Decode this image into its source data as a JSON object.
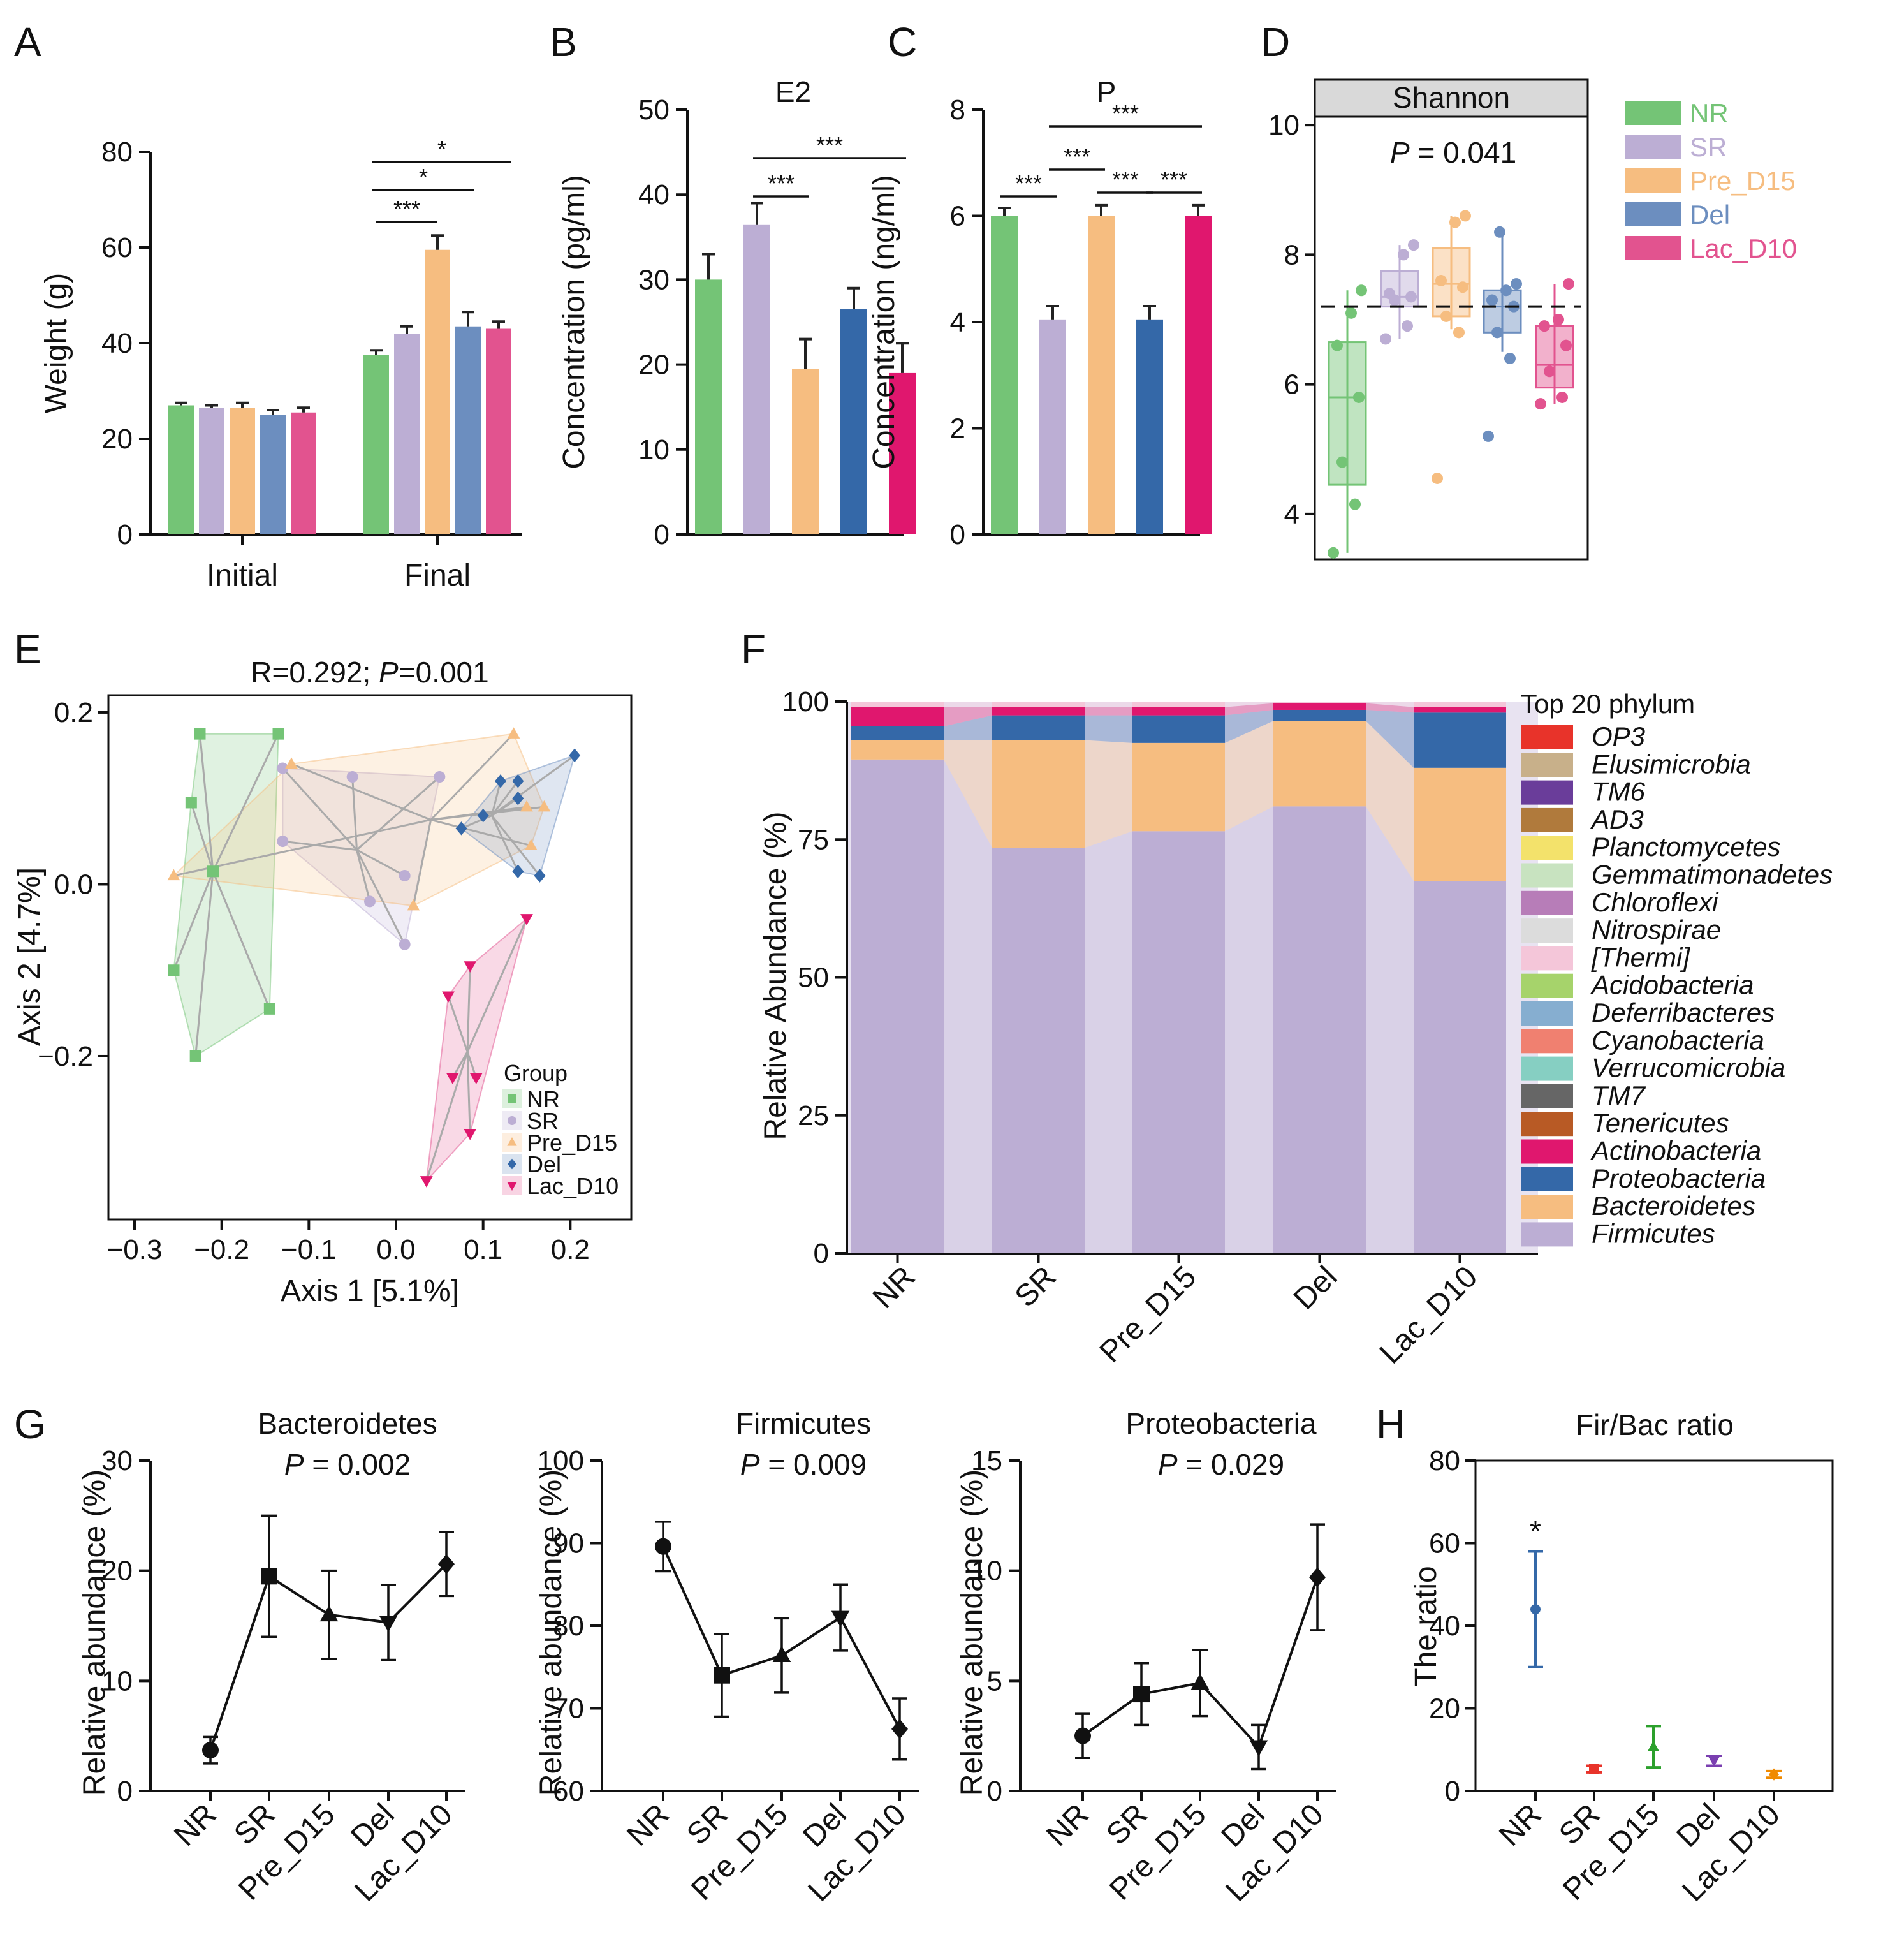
{
  "colors": {
    "NR": "#74c476",
    "SR": "#bcaed4",
    "Pre_D15": "#f6bd80",
    "Del": "#6c8ebf",
    "Lac_D10": "#e2538f"
  },
  "panels": {
    "A": "A",
    "B": "B",
    "C": "C",
    "D": "D",
    "E": "E",
    "F": "F",
    "G": "G",
    "H": "H"
  },
  "chart_data": [
    {
      "id": "A",
      "type": "bar",
      "groups": [
        "Initial",
        "Final"
      ],
      "series_names": [
        "NR",
        "SR",
        "Pre_D15",
        "Del",
        "Lac_D10"
      ],
      "values": [
        [
          27,
          26.5,
          26.5,
          25,
          25.5
        ],
        [
          37.5,
          42,
          59.5,
          43.5,
          43
        ]
      ],
      "errors": [
        [
          0.5,
          0.5,
          1,
          1,
          1
        ],
        [
          1,
          1.5,
          3,
          3,
          1.5
        ]
      ],
      "ylabel": "Weight (g)",
      "ylim": [
        0,
        80
      ],
      "yticks": [
        0,
        20,
        40,
        60,
        80
      ],
      "sig": [
        {
          "from": 0,
          "to": 2,
          "label": "***"
        },
        {
          "from": 0,
          "to": 3,
          "label": "*"
        },
        {
          "from": 0,
          "to": 4,
          "label": "*"
        }
      ]
    },
    {
      "id": "B",
      "type": "bar",
      "title": "E2",
      "categories": [
        "NR",
        "SR",
        "Pre_D15",
        "Del",
        "Lac_D10"
      ],
      "values": [
        30,
        36.5,
        19.5,
        26.5,
        19
      ],
      "errors": [
        3,
        2.5,
        3.5,
        2.5,
        3.5
      ],
      "colors": [
        "#74c476",
        "#bcaed4",
        "#f6bd80",
        "#3468a8",
        "#e0176e"
      ],
      "ylabel": "Concentration (pg/ml)",
      "ylim": [
        0,
        50
      ],
      "yticks": [
        0,
        10,
        20,
        30,
        40,
        50
      ],
      "sig": [
        {
          "from": 1,
          "to": 2,
          "label": "***"
        },
        {
          "from": 1,
          "to": 4,
          "label": "***"
        }
      ]
    },
    {
      "id": "C",
      "type": "bar",
      "title": "P",
      "categories": [
        "NR",
        "SR",
        "Pre_D15",
        "Del",
        "Lac_D10"
      ],
      "values": [
        6,
        4.05,
        6,
        4.05,
        6
      ],
      "errors": [
        0.15,
        0.25,
        0.2,
        0.25,
        0.2
      ],
      "colors": [
        "#74c476",
        "#bcaed4",
        "#f6bd80",
        "#3468a8",
        "#e0176e"
      ],
      "ylabel": "Concentration (ng/ml)",
      "ylim": [
        0,
        8
      ],
      "yticks": [
        0,
        2,
        4,
        6,
        8
      ],
      "sig": [
        {
          "from": 0,
          "to": 1,
          "label": "***"
        },
        {
          "from": 1,
          "to": 2,
          "label": "***"
        },
        {
          "from": 1,
          "to": 4,
          "label": "***"
        },
        {
          "from": 2,
          "to": 3,
          "label": "***"
        },
        {
          "from": 3,
          "to": 4,
          "label": "***"
        }
      ]
    },
    {
      "id": "D",
      "type": "box",
      "title": "Shannon",
      "ptext": "= 0.041",
      "categories": [
        "NR",
        "SR",
        "Pre_D15",
        "Del",
        "Lac_D10"
      ],
      "ylim": [
        3.3,
        10.7
      ],
      "yticks": [
        4,
        6,
        8,
        10
      ],
      "refline": 7.2,
      "boxes": [
        {
          "q1": 4.45,
          "med": 5.8,
          "q3": 6.65,
          "lo": 3.4,
          "hi": 7.45,
          "pts": [
            3.4,
            4.15,
            4.8,
            5.8,
            6.6,
            7.1,
            7.45
          ]
        },
        {
          "q1": 7.2,
          "med": 7.35,
          "q3": 7.75,
          "lo": 6.7,
          "hi": 8.15,
          "pts": [
            6.7,
            6.9,
            7.3,
            7.35,
            7.4,
            8.0,
            8.15
          ]
        },
        {
          "q1": 7.05,
          "med": 7.55,
          "q3": 8.1,
          "lo": 6.85,
          "hi": 8.6,
          "pts": [
            4.55,
            6.8,
            7.05,
            7.5,
            7.6,
            8.5,
            8.6
          ]
        },
        {
          "q1": 6.8,
          "med": 7.2,
          "q3": 7.45,
          "lo": 6.5,
          "hi": 8.35,
          "pts": [
            5.2,
            6.4,
            6.8,
            7.2,
            7.3,
            7.45,
            7.55,
            8.35
          ]
        },
        {
          "q1": 5.95,
          "med": 6.3,
          "q3": 6.9,
          "lo": 5.7,
          "hi": 7.55,
          "pts": [
            5.7,
            5.8,
            6.2,
            6.6,
            6.9,
            7.0,
            7.55
          ]
        }
      ],
      "legend": [
        "NR",
        "SR",
        "Pre_D15",
        "Del",
        "Lac_D10"
      ]
    },
    {
      "id": "E",
      "type": "scatter",
      "title_prefix": "R=0.292; ",
      "title_suffix": "=0.001",
      "xlabel": "Axis 1 [5.1%]",
      "ylabel": "Axis 2 [4.7%]",
      "xlim": [
        -0.33,
        0.27
      ],
      "ylim": [
        -0.39,
        0.22
      ],
      "xticks": [
        -0.3,
        -0.2,
        -0.1,
        0.0,
        0.1,
        0.2
      ],
      "yticks": [
        -0.2,
        0.0,
        0.2
      ],
      "legend_title": "Group",
      "groups": [
        {
          "name": "NR",
          "shape": "square",
          "centroid": [
            -0.21,
            0.015
          ],
          "points": [
            [
              -0.225,
              0.175
            ],
            [
              -0.135,
              0.175
            ],
            [
              -0.235,
              0.095
            ],
            [
              -0.21,
              0.015
            ],
            [
              -0.255,
              -0.1
            ],
            [
              -0.145,
              -0.145
            ],
            [
              -0.23,
              -0.2
            ]
          ]
        },
        {
          "name": "SR",
          "shape": "circle",
          "centroid": [
            -0.045,
            0.04
          ],
          "points": [
            [
              -0.13,
              0.135
            ],
            [
              -0.05,
              0.125
            ],
            [
              0.05,
              0.125
            ],
            [
              -0.13,
              0.05
            ],
            [
              0.01,
              0.01
            ],
            [
              -0.03,
              -0.02
            ],
            [
              0.01,
              -0.07
            ]
          ]
        },
        {
          "name": "Pre_D15",
          "shape": "triangle",
          "centroid": [
            0.04,
            0.075
          ],
          "points": [
            [
              0.135,
              0.175
            ],
            [
              -0.12,
              0.14
            ],
            [
              0.15,
              0.09
            ],
            [
              0.17,
              0.09
            ],
            [
              -0.255,
              0.01
            ],
            [
              0.155,
              0.045
            ],
            [
              0.02,
              -0.025
            ]
          ]
        },
        {
          "name": "Del",
          "shape": "diamond",
          "centroid": [
            0.11,
            0.08
          ],
          "points": [
            [
              0.205,
              0.15
            ],
            [
              0.12,
              0.12
            ],
            [
              0.14,
              0.12
            ],
            [
              0.1,
              0.08
            ],
            [
              0.14,
              0.1
            ],
            [
              0.075,
              0.065
            ],
            [
              0.165,
              0.01
            ],
            [
              0.14,
              0.015
            ]
          ]
        },
        {
          "name": "Lac_D10",
          "shape": "tridown",
          "centroid": [
            0.082,
            -0.195
          ],
          "points": [
            [
              0.15,
              -0.04
            ],
            [
              0.085,
              -0.095
            ],
            [
              0.06,
              -0.13
            ],
            [
              0.065,
              -0.225
            ],
            [
              0.092,
              -0.225
            ],
            [
              0.085,
              -0.29
            ],
            [
              0.035,
              -0.345
            ]
          ]
        }
      ]
    },
    {
      "id": "F",
      "type": "bar",
      "stacked": true,
      "categories": [
        "NR",
        "SR",
        "Pre_D15",
        "Del",
        "Lac_D10"
      ],
      "ylabel": "Relative Abundance (%)",
      "ylim": [
        0,
        100
      ],
      "yticks": [
        0,
        25,
        50,
        75,
        100
      ],
      "legend_title": "Top 20 phylum",
      "legend": [
        {
          "name": "OP3",
          "color": "#e8332a"
        },
        {
          "name": "Elusimicrobia",
          "color": "#c8b08a"
        },
        {
          "name": "TM6",
          "color": "#6a3d9a"
        },
        {
          "name": "AD3",
          "color": "#b07a3c"
        },
        {
          "name": "Planctomycetes",
          "color": "#f3e26b"
        },
        {
          "name": "Gemmatimonadetes",
          "color": "#c8e3c0"
        },
        {
          "name": "Chloroflexi",
          "color": "#b77db8"
        },
        {
          "name": "Nitrospirae",
          "color": "#dcdcdc"
        },
        {
          "name": "[Thermi]",
          "color": "#f4c6d9"
        },
        {
          "name": "Acidobacteria",
          "color": "#a6d36b"
        },
        {
          "name": "Deferribacteres",
          "color": "#86aed0"
        },
        {
          "name": "Cyanobacteria",
          "color": "#f08070"
        },
        {
          "name": "Verrucomicrobia",
          "color": "#86cfc2"
        },
        {
          "name": "TM7",
          "color": "#666666"
        },
        {
          "name": "Tenericutes",
          "color": "#b85a25"
        },
        {
          "name": "Actinobacteria",
          "color": "#e0176e"
        },
        {
          "name": "Proteobacteria",
          "color": "#3468a8"
        },
        {
          "name": "Bacteroidetes",
          "color": "#f6bd80"
        },
        {
          "name": "Firmicutes",
          "color": "#bcaed4"
        }
      ],
      "stacks": [
        {
          "Firmicutes": 89.5,
          "Bacteroidetes": 3.5,
          "Proteobacteria": 2.5,
          "Actinobacteria": 3.5,
          "Other": 1
        },
        {
          "Firmicutes": 73.5,
          "Bacteroidetes": 19.5,
          "Proteobacteria": 4.5,
          "Actinobacteria": 1.5,
          "Other": 1
        },
        {
          "Firmicutes": 76.5,
          "Bacteroidetes": 16,
          "Proteobacteria": 5,
          "Actinobacteria": 1.5,
          "Other": 1
        },
        {
          "Firmicutes": 81,
          "Bacteroidetes": 15.5,
          "Proteobacteria": 2,
          "Actinobacteria": 1.2,
          "Other": 0.3
        },
        {
          "Firmicutes": 67.5,
          "Bacteroidetes": 20.5,
          "Proteobacteria": 10,
          "Actinobacteria": 1,
          "Other": 1
        }
      ]
    },
    {
      "id": "G1",
      "type": "line",
      "title": "Bacteroidetes",
      "ptext": "= 0.002",
      "categories": [
        "NR",
        "SR",
        "Pre_D15",
        "Del",
        "Lac_D10"
      ],
      "values": [
        3.7,
        19.5,
        16,
        15.3,
        20.6
      ],
      "errors": [
        1.2,
        5.5,
        4,
        3.4,
        2.9
      ],
      "markers": [
        "circle",
        "square",
        "triangle",
        "tridown",
        "diamond"
      ],
      "ylabel": "Relative abundance (%)",
      "ylim": [
        0,
        30
      ],
      "yticks": [
        0,
        10,
        20,
        30
      ]
    },
    {
      "id": "G2",
      "type": "line",
      "title": "Firmicutes",
      "ptext": "= 0.009",
      "categories": [
        "NR",
        "SR",
        "Pre_D15",
        "Del",
        "Lac_D10"
      ],
      "values": [
        89.6,
        74,
        76.4,
        81,
        67.5
      ],
      "errors": [
        3,
        5,
        4.5,
        4,
        3.7
      ],
      "markers": [
        "circle",
        "square",
        "triangle",
        "tridown",
        "diamond"
      ],
      "ylabel": "Relative abundance (%)",
      "ylim": [
        60,
        100
      ],
      "yticks": [
        60,
        70,
        80,
        90,
        100
      ]
    },
    {
      "id": "G3",
      "type": "line",
      "title": "Proteobacteria",
      "ptext": "= 0.029",
      "categories": [
        "NR",
        "SR",
        "Pre_D15",
        "Del",
        "Lac_D10"
      ],
      "values": [
        2.5,
        4.4,
        4.9,
        2,
        9.7
      ],
      "errors": [
        1,
        1.4,
        1.5,
        1,
        2.4
      ],
      "markers": [
        "circle",
        "square",
        "triangle",
        "tridown",
        "diamond"
      ],
      "ylabel": "Relative abundance (%)",
      "ylim": [
        0,
        15
      ],
      "yticks": [
        0,
        5,
        10,
        15
      ]
    },
    {
      "id": "H",
      "type": "scatter",
      "title": "Fir/Bac ratio",
      "categories": [
        "NR",
        "SR",
        "Pre_D15",
        "Del",
        "Lac_D10"
      ],
      "values": [
        44,
        5.3,
        10.7,
        7.3,
        4
      ],
      "errors": [
        14,
        0.8,
        5,
        1.2,
        0.8
      ],
      "colors": [
        "#3468a8",
        "#e8332a",
        "#2ca02c",
        "#7a3fb0",
        "#f08a00"
      ],
      "ylabel": "The ratio",
      "ylim": [
        0,
        80
      ],
      "yticks": [
        0,
        20,
        40,
        60,
        80
      ],
      "sig": [
        {
          "index": 0,
          "label": "*"
        }
      ]
    }
  ]
}
